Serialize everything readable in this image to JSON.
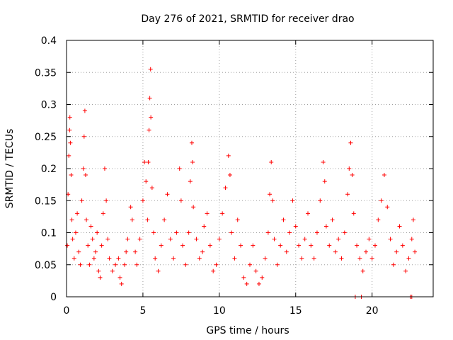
{
  "chart_data": {
    "type": "scatter",
    "title": "Day 276 of 2021, SRMTID for receiver drao",
    "xlabel": "GPS time / hours",
    "ylabel": "SRMTID / TECUs",
    "xlim": [
      0,
      24
    ],
    "ylim": [
      0,
      0.4
    ],
    "xticks": [
      0,
      5,
      10,
      15,
      20
    ],
    "xtick_labels": [
      "0",
      "5",
      "10",
      "15",
      "20"
    ],
    "yticks": [
      0,
      0.05,
      0.1,
      0.15,
      0.2,
      0.25,
      0.3,
      0.35,
      0.4
    ],
    "ytick_labels": [
      "0",
      "0.05",
      "0.1",
      "0.15",
      "0.2",
      "0.25",
      "0.3",
      "0.35",
      "0.4"
    ],
    "grid": true,
    "marker": "+",
    "color": "#ff0000",
    "series": [
      {
        "name": "SRMTID",
        "points": [
          [
            0.05,
            0.08
          ],
          [
            0.1,
            0.16
          ],
          [
            0.15,
            0.22
          ],
          [
            0.2,
            0.26
          ],
          [
            0.22,
            0.28
          ],
          [
            0.25,
            0.24
          ],
          [
            0.3,
            0.19
          ],
          [
            0.35,
            0.12
          ],
          [
            0.4,
            0.09
          ],
          [
            0.5,
            0.06
          ],
          [
            0.6,
            0.1
          ],
          [
            0.7,
            0.13
          ],
          [
            0.8,
            0.07
          ],
          [
            0.9,
            0.05
          ],
          [
            1.0,
            0.15
          ],
          [
            1.1,
            0.2
          ],
          [
            1.15,
            0.25
          ],
          [
            1.2,
            0.29
          ],
          [
            1.25,
            0.19
          ],
          [
            1.3,
            0.12
          ],
          [
            1.4,
            0.08
          ],
          [
            1.5,
            0.05
          ],
          [
            1.6,
            0.11
          ],
          [
            1.7,
            0.09
          ],
          [
            1.8,
            0.06
          ],
          [
            1.9,
            0.07
          ],
          [
            2.0,
            0.1
          ],
          [
            2.1,
            0.04
          ],
          [
            2.2,
            0.03
          ],
          [
            2.3,
            0.08
          ],
          [
            2.4,
            0.13
          ],
          [
            2.5,
            0.2
          ],
          [
            2.6,
            0.15
          ],
          [
            2.7,
            0.09
          ],
          [
            2.8,
            0.06
          ],
          [
            3.0,
            0.04
          ],
          [
            3.2,
            0.05
          ],
          [
            3.4,
            0.06
          ],
          [
            3.5,
            0.03
          ],
          [
            3.6,
            0.02
          ],
          [
            3.8,
            0.05
          ],
          [
            3.9,
            0.07
          ],
          [
            4.0,
            0.09
          ],
          [
            4.2,
            0.14
          ],
          [
            4.3,
            0.12
          ],
          [
            4.5,
            0.07
          ],
          [
            4.6,
            0.05
          ],
          [
            4.8,
            0.09
          ],
          [
            5.0,
            0.15
          ],
          [
            5.1,
            0.21
          ],
          [
            5.2,
            0.18
          ],
          [
            5.3,
            0.12
          ],
          [
            5.35,
            0.21
          ],
          [
            5.4,
            0.26
          ],
          [
            5.45,
            0.31
          ],
          [
            5.5,
            0.355
          ],
          [
            5.52,
            0.28
          ],
          [
            5.6,
            0.17
          ],
          [
            5.7,
            0.1
          ],
          [
            5.8,
            0.06
          ],
          [
            6.0,
            0.04
          ],
          [
            6.2,
            0.08
          ],
          [
            6.4,
            0.12
          ],
          [
            6.6,
            0.16
          ],
          [
            6.8,
            0.09
          ],
          [
            7.0,
            0.06
          ],
          [
            7.2,
            0.1
          ],
          [
            7.4,
            0.2
          ],
          [
            7.5,
            0.15
          ],
          [
            7.6,
            0.08
          ],
          [
            7.8,
            0.05
          ],
          [
            8.0,
            0.1
          ],
          [
            8.1,
            0.18
          ],
          [
            8.2,
            0.24
          ],
          [
            8.25,
            0.21
          ],
          [
            8.3,
            0.14
          ],
          [
            8.5,
            0.09
          ],
          [
            8.7,
            0.06
          ],
          [
            8.9,
            0.07
          ],
          [
            9.0,
            0.11
          ],
          [
            9.2,
            0.13
          ],
          [
            9.4,
            0.08
          ],
          [
            9.6,
            0.04
          ],
          [
            9.8,
            0.05
          ],
          [
            10.0,
            0.09
          ],
          [
            10.2,
            0.13
          ],
          [
            10.4,
            0.17
          ],
          [
            10.6,
            0.22
          ],
          [
            10.7,
            0.19
          ],
          [
            10.8,
            0.1
          ],
          [
            11.0,
            0.06
          ],
          [
            11.2,
            0.12
          ],
          [
            11.4,
            0.08
          ],
          [
            11.6,
            0.03
          ],
          [
            11.8,
            0.02
          ],
          [
            12.0,
            0.05
          ],
          [
            12.2,
            0.08
          ],
          [
            12.4,
            0.04
          ],
          [
            12.6,
            0.02
          ],
          [
            12.8,
            0.03
          ],
          [
            13.0,
            0.06
          ],
          [
            13.2,
            0.1
          ],
          [
            13.3,
            0.16
          ],
          [
            13.4,
            0.21
          ],
          [
            13.5,
            0.15
          ],
          [
            13.6,
            0.09
          ],
          [
            13.8,
            0.05
          ],
          [
            14.0,
            0.08
          ],
          [
            14.2,
            0.12
          ],
          [
            14.4,
            0.07
          ],
          [
            14.6,
            0.1
          ],
          [
            14.8,
            0.15
          ],
          [
            15.0,
            0.11
          ],
          [
            15.2,
            0.08
          ],
          [
            15.4,
            0.06
          ],
          [
            15.6,
            0.09
          ],
          [
            15.8,
            0.13
          ],
          [
            16.0,
            0.08
          ],
          [
            16.2,
            0.06
          ],
          [
            16.4,
            0.1
          ],
          [
            16.6,
            0.15
          ],
          [
            16.8,
            0.21
          ],
          [
            16.9,
            0.18
          ],
          [
            17.0,
            0.11
          ],
          [
            17.2,
            0.08
          ],
          [
            17.4,
            0.12
          ],
          [
            17.6,
            0.07
          ],
          [
            17.8,
            0.09
          ],
          [
            18.0,
            0.06
          ],
          [
            18.2,
            0.1
          ],
          [
            18.4,
            0.16
          ],
          [
            18.5,
            0.2
          ],
          [
            18.6,
            0.24
          ],
          [
            18.7,
            0.19
          ],
          [
            18.8,
            0.13
          ],
          [
            19.0,
            0.08
          ],
          [
            19.2,
            0.06
          ],
          [
            19.4,
            0.04
          ],
          [
            19.6,
            0.07
          ],
          [
            19.8,
            0.09
          ],
          [
            20.0,
            0.06
          ],
          [
            20.2,
            0.08
          ],
          [
            20.4,
            0.12
          ],
          [
            20.6,
            0.15
          ],
          [
            20.8,
            0.19
          ],
          [
            21.0,
            0.14
          ],
          [
            21.2,
            0.09
          ],
          [
            21.4,
            0.05
          ],
          [
            21.6,
            0.07
          ],
          [
            21.8,
            0.11
          ],
          [
            22.0,
            0.08
          ],
          [
            22.2,
            0.04
          ],
          [
            22.4,
            0.06
          ],
          [
            22.6,
            0.09
          ],
          [
            22.7,
            0.12
          ],
          [
            22.8,
            0.07
          ],
          [
            18.9,
            0.0
          ],
          [
            19.3,
            0.0
          ],
          [
            22.5,
            0.0
          ],
          [
            22.6,
            0.0
          ]
        ]
      }
    ]
  }
}
